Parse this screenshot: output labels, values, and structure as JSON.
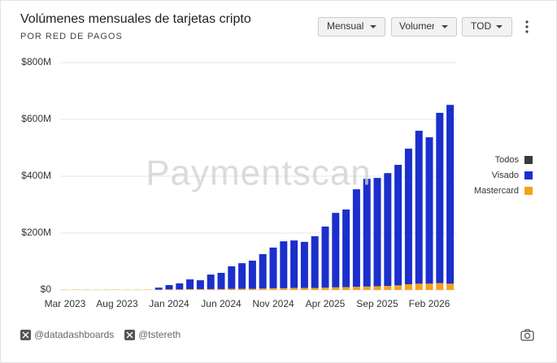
{
  "chart_data": {
    "type": "stacked-bar",
    "title": "Volúmenes mensuales de tarjetas cripto",
    "subtitle": "POR RED DE PAGOS",
    "categories": [
      "Mar 2023",
      null,
      null,
      null,
      null,
      "Aug 2023",
      null,
      null,
      null,
      null,
      "Jan 2024",
      null,
      null,
      null,
      null,
      "Jun 2024",
      null,
      null,
      null,
      null,
      "Nov 2024",
      null,
      null,
      null,
      null,
      "Apr 2025",
      null,
      null,
      null,
      null,
      "Sep 2025",
      null,
      null,
      null,
      null,
      "Feb 2026",
      null,
      null
    ],
    "series": [
      {
        "name": "Todos",
        "color": "#3a3a3a",
        "values": [
          null,
          null,
          null,
          null,
          null,
          null,
          null,
          null,
          null,
          null,
          null,
          null,
          null,
          null,
          null,
          null,
          null,
          null,
          null,
          null,
          null,
          null,
          null,
          null,
          null,
          null,
          null,
          null,
          null,
          null,
          null,
          null,
          null,
          null,
          null,
          null,
          null,
          null
        ]
      },
      {
        "name": "Visado",
        "color": "#1a2fcc",
        "values": [
          0,
          0,
          0,
          0,
          0,
          0,
          0,
          0,
          0,
          7,
          15,
          21,
          34,
          31,
          51,
          57,
          79,
          90,
          99,
          121,
          143,
          165,
          167,
          162,
          182,
          215,
          262,
          273,
          343,
          379,
          381,
          397,
          424,
          477,
          538,
          515,
          599,
          629
        ]
      },
      {
        "name": "Mastercard",
        "color": "#f5a21b",
        "values": [
          1,
          1,
          1,
          1,
          1,
          1,
          1,
          1,
          1,
          1,
          2,
          2,
          3,
          3,
          3,
          3,
          4,
          4,
          4,
          5,
          6,
          6,
          7,
          7,
          7,
          8,
          9,
          10,
          11,
          12,
          13,
          14,
          16,
          20,
          22,
          22,
          24,
          22
        ]
      }
    ],
    "ylim": [
      0,
      800
    ],
    "yticks": [
      {
        "value": 0,
        "label": "$0"
      },
      {
        "value": 200,
        "label": "$200M"
      },
      {
        "value": 400,
        "label": "$400M"
      },
      {
        "value": 600,
        "label": "$600M"
      },
      {
        "value": 800,
        "label": "$800M"
      }
    ],
    "grid": true,
    "legend": "right",
    "watermark": "Paymentscan"
  },
  "controls": [
    "Mensual",
    "Volumen",
    "TOD"
  ],
  "footer": [
    "@datadashboards",
    "@tstereth"
  ]
}
